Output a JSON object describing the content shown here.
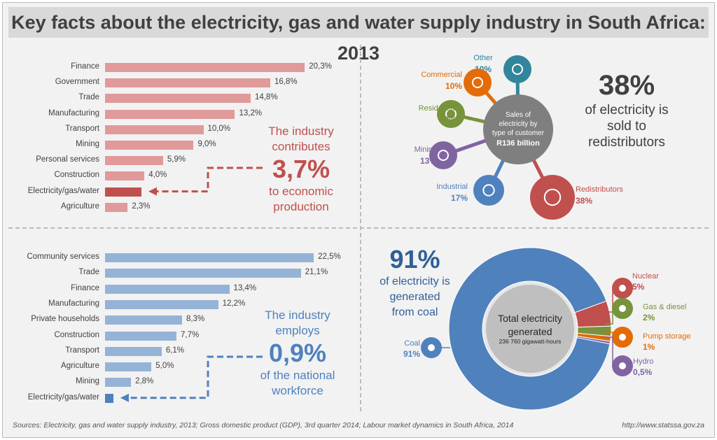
{
  "title": "Key facts about the electricity, gas and water supply industry in South Africa: 2013",
  "footer": {
    "sources": "Sources: Electricity, gas and water supply industry, 2013; Gross domestic product (GDP), 3rd quarter 2014; Labour market dynamics in South Africa, 2014",
    "url": "http://www.statssa.gov.za"
  },
  "gdp_callout": {
    "line1": "The industry",
    "line2": "contributes",
    "value": "3,7%",
    "line3": "to economic",
    "line4": "production"
  },
  "emp_callout": {
    "line1": "The industry",
    "line2": "employs",
    "value": "0,9%",
    "line3": "of the national",
    "line4": "workforce"
  },
  "sales_callout": {
    "value": "38%",
    "line1": "of electricity is",
    "line2": "sold to",
    "line3": "redistributors"
  },
  "coal_callout": {
    "value": "91%",
    "line1": "of electricity is",
    "line2": "generated",
    "line3": "from coal"
  },
  "chart_data": [
    {
      "type": "bar",
      "orientation": "horizontal",
      "categories": [
        "Finance",
        "Government",
        "Trade",
        "Manufacturing",
        "Transport",
        "Mining",
        "Personal services",
        "Construction",
        "Electricity/gas/water",
        "Agriculture"
      ],
      "values": [
        20.3,
        16.8,
        14.8,
        13.2,
        10.0,
        9.0,
        5.9,
        4.0,
        3.7,
        2.3
      ],
      "labels": [
        "20,3%",
        "16,8%",
        "14,8%",
        "13,2%",
        "10,0%",
        "9,0%",
        "5,9%",
        "4,0%",
        "",
        "2,3%"
      ],
      "highlight": "Electricity/gas/water",
      "color": "#e09a9a",
      "highlight_color": "#c0504d"
    },
    {
      "type": "bar",
      "orientation": "horizontal",
      "categories": [
        "Community services",
        "Trade",
        "Finance",
        "Manufacturing",
        "Private households",
        "Construction",
        "Transport",
        "Agriculture",
        "Mining",
        "Electricity/gas/water"
      ],
      "values": [
        22.5,
        21.1,
        13.4,
        12.2,
        8.3,
        7.7,
        6.1,
        5.0,
        2.8,
        0.9
      ],
      "labels": [
        "22,5%",
        "21,1%",
        "13,4%",
        "12,2%",
        "8,3%",
        "7,7%",
        "6,1%",
        "5,0%",
        "2,8%",
        ""
      ],
      "highlight": "Electricity/gas/water",
      "color": "#95b3d7",
      "highlight_color": "#4f81bd"
    },
    {
      "type": "pie",
      "center_text": [
        "Sales of",
        "electricity by",
        "type of customer"
      ],
      "center_value": "R136 billion",
      "slices": [
        {
          "name": "Other",
          "label": "10%",
          "value": 10,
          "color": "#31859c",
          "icon": "circle-icon"
        },
        {
          "name": "Commercial",
          "label": "10%",
          "value": 10,
          "color": "#e36c09",
          "icon": "office-worker-icon"
        },
        {
          "name": "Residential",
          "label": "12%",
          "value": 12,
          "color": "#77933c",
          "icon": "house-icon"
        },
        {
          "name": "Mining",
          "label": "13%",
          "value": 13,
          "color": "#8064a2",
          "icon": "mine-cart-icon"
        },
        {
          "name": "Industrial",
          "label": "17%",
          "value": 17,
          "color": "#4f81bd",
          "icon": "gear-icon"
        },
        {
          "name": "Redistributors",
          "label": "38%",
          "value": 38,
          "color": "#c0504d",
          "icon": "factory-pylon-icon"
        }
      ]
    },
    {
      "type": "pie",
      "donut": true,
      "center_text": [
        "Total electricity",
        "generated"
      ],
      "center_sub": "236 760 gigawatt-hours",
      "slices": [
        {
          "name": "Coal",
          "label": "91%",
          "value": 91,
          "color": "#4f81bd",
          "icon": "coal-truck-icon"
        },
        {
          "name": "Nuclear",
          "label": "5%",
          "value": 5,
          "color": "#c0504d",
          "icon": "radiation-icon"
        },
        {
          "name": "Gas & diesel",
          "label": "2%",
          "value": 2,
          "color": "#77933c",
          "icon": "flame-icon"
        },
        {
          "name": "Pump storage",
          "label": "1%",
          "value": 1,
          "color": "#e36c09",
          "icon": "tap-icon"
        },
        {
          "name": "Hydro",
          "label": "0,5%",
          "value": 0.5,
          "color": "#8064a2",
          "icon": "water-drop-icon"
        }
      ]
    }
  ]
}
